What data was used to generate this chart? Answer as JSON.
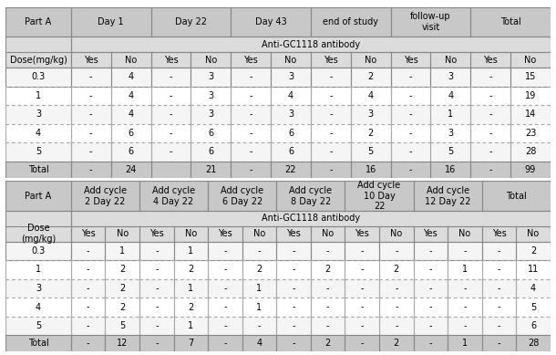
{
  "table1": {
    "title_col": "Part A",
    "col_headers": [
      "Day 1",
      "Day 22",
      "Day 43",
      "end of study",
      "follow-up\nvisit",
      "Total"
    ],
    "sub_header": "Anti-GC1118 antibody",
    "row_label_header": "Dose(mg/kg)",
    "doses": [
      "0.3",
      "1",
      "3",
      "4",
      "5"
    ],
    "rows": [
      [
        "-",
        "4",
        "-",
        "3",
        "-",
        "3",
        "-",
        "2",
        "-",
        "3",
        "-",
        "15"
      ],
      [
        "-",
        "4",
        "-",
        "3",
        "-",
        "4",
        "-",
        "4",
        "-",
        "4",
        "-",
        "19"
      ],
      [
        "-",
        "4",
        "-",
        "3",
        "-",
        "3",
        "-",
        "3",
        "-",
        "1",
        "-",
        "14"
      ],
      [
        "-",
        "6",
        "-",
        "6",
        "-",
        "6",
        "-",
        "2",
        "-",
        "3",
        "-",
        "23"
      ],
      [
        "-",
        "6",
        "-",
        "6",
        "-",
        "6",
        "-",
        "5",
        "-",
        "5",
        "-",
        "28"
      ]
    ],
    "total_row": [
      "-",
      "24",
      "",
      "21",
      "-",
      "22",
      "-",
      "16",
      "-",
      "16",
      "-",
      "99"
    ]
  },
  "table2": {
    "title_col": "Part A",
    "col_headers": [
      "Add cycle\n2 Day 22",
      "Add cycle\n4 Day 22",
      "Add cycle\n6 Day 22",
      "Add cycle\n8 Day 22",
      "Add cycle\n10 Day\n22",
      "Add cycle\n12 Day 22",
      "Total"
    ],
    "sub_header": "Anti-GC1118 antibody",
    "row_label_header": "Dose\n(mg/kg)",
    "doses": [
      "0.3",
      "1",
      "3",
      "4",
      "5"
    ],
    "rows": [
      [
        "-",
        "1",
        "-",
        "1",
        "-",
        "-",
        "-",
        "-",
        "-",
        "-",
        "-",
        "-",
        "-",
        "2"
      ],
      [
        "-",
        "2",
        "-",
        "2",
        "-",
        "2",
        "-",
        "2",
        "-",
        "2",
        "-",
        "1",
        "-",
        "11"
      ],
      [
        "-",
        "2",
        "-",
        "1",
        "-",
        "1",
        "-",
        "-",
        "-",
        "-",
        "-",
        "-",
        "-",
        "4"
      ],
      [
        "-",
        "2",
        "-",
        "2",
        "-",
        "1",
        "-",
        "-",
        "-",
        "-",
        "-",
        "-",
        "-",
        "5"
      ],
      [
        "-",
        "5",
        "-",
        "1",
        "-",
        "-",
        "-",
        "-",
        "-",
        "-",
        "-",
        "-",
        "-",
        "6"
      ]
    ],
    "total_row": [
      "-",
      "12",
      "-",
      "7",
      "-",
      "4",
      "-",
      "2",
      "-",
      "2",
      "-",
      "1",
      "-",
      "28"
    ]
  },
  "colors": {
    "header_bg": "#c8c8c8",
    "subheader_bg": "#dcdcdc",
    "yn_bg": "#dcdcdc",
    "row_bg_odd": "#f5f5f5",
    "row_bg_even": "#ffffff",
    "total_bg": "#c8c8c8",
    "border_solid": "#888888",
    "border_dot": "#aaaaaa",
    "text": "#000000"
  },
  "fontsize": 7,
  "fontfamily": "DejaVu Sans"
}
